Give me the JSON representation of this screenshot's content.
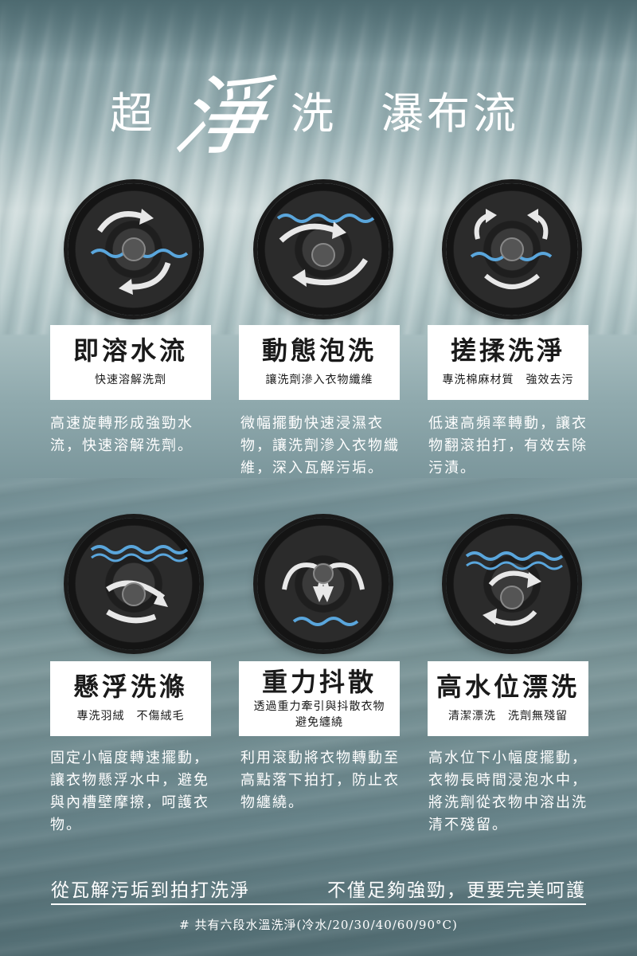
{
  "title": {
    "part1": "超",
    "part2": "淨",
    "part3": "洗",
    "part4": "瀑布流"
  },
  "modes": [
    {
      "name": "即溶水流",
      "sub": "快速溶解洗劑",
      "desc": "高速旋轉形成強勁水流，快速溶解洗劑。"
    },
    {
      "name": "動態泡洗",
      "sub": "讓洗劑滲入衣物纖維",
      "desc": "微幅擺動快速浸濕衣物，讓洗劑滲入衣物纖維，深入瓦解污垢。"
    },
    {
      "name": "搓揉洗淨",
      "sub": "專洗棉麻材質　強效去污",
      "desc": "低速高頻率轉動，讓衣物翻滾拍打，有效去除污漬。"
    },
    {
      "name": "懸浮洗滌",
      "sub": "專洗羽絨　不傷絨毛",
      "desc": "固定小幅度轉速擺動，讓衣物懸浮水中，避免與內槽壁摩擦，呵護衣物。"
    },
    {
      "name": "重力抖散",
      "sub": "透過重力牽引與抖散衣物",
      "sub2": "避免纏繞",
      "desc": "利用滾動將衣物轉動至高點落下拍打，防止衣物纏繞。"
    },
    {
      "name": "高水位漂洗",
      "sub": "清潔漂洗　洗劑無殘留",
      "desc": "高水位下小幅度擺動，衣物長時間浸泡水中，將洗劑從衣物中溶出洗清不殘留。"
    }
  ],
  "bottom": {
    "left": "從瓦解污垢到拍打洗淨",
    "right": "不僅足夠強勁，更要完美呵護"
  },
  "footnote": "# 共有六段水溫洗淨(冷水/20/30/40/60/90°C)",
  "colors": {
    "water_wave": "#5aa6dc",
    "arrow": "#e8e8e8",
    "card_bg": "#ffffff"
  }
}
